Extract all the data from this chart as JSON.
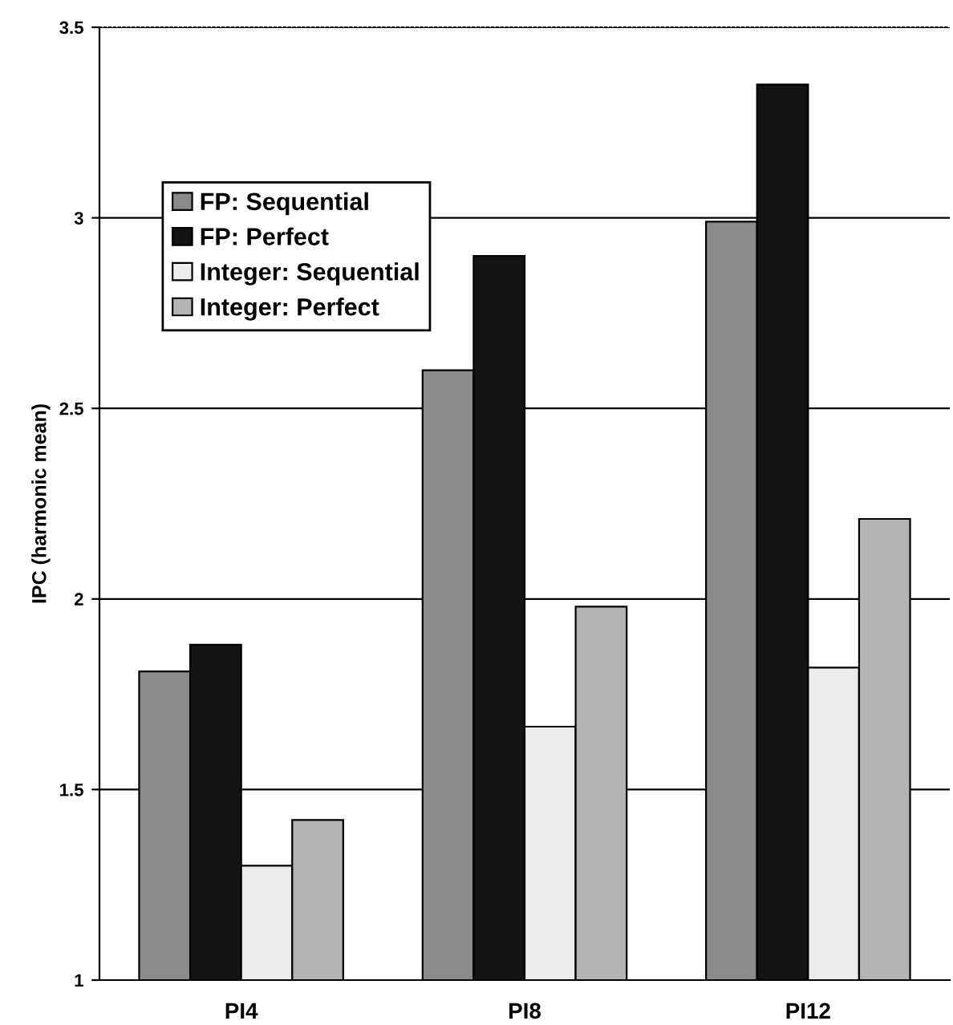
{
  "chart_data": {
    "type": "bar",
    "ylabel": "IPC (harmonic mean)",
    "categories": [
      "PI4",
      "PI8",
      "PI12"
    ],
    "series": [
      {
        "name": "FP: Sequential",
        "color": "#8a8a8a",
        "values": [
          1.81,
          2.6,
          2.99
        ]
      },
      {
        "name": "FP: Perfect",
        "color": "#141414",
        "values": [
          1.88,
          2.9,
          3.35
        ]
      },
      {
        "name": "Integer: Sequential",
        "color": "#ececec",
        "values": [
          1.3,
          1.665,
          1.82
        ]
      },
      {
        "name": "Integer: Perfect",
        "color": "#b4b4b4",
        "values": [
          1.42,
          1.98,
          2.21
        ]
      }
    ],
    "ylim": [
      1,
      3.5
    ],
    "yticks": [
      1,
      1.5,
      2,
      2.5,
      3,
      3.5
    ],
    "grid": "y",
    "legend": "top left"
  }
}
